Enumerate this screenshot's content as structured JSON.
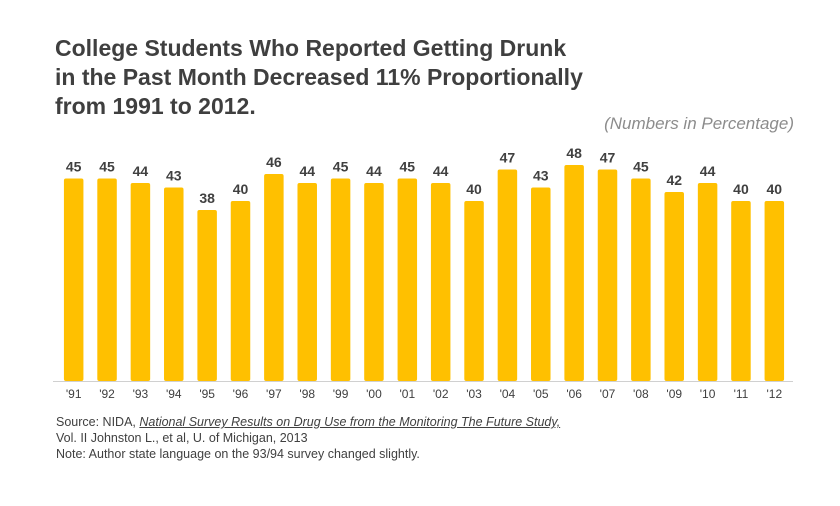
{
  "title_lines": [
    "College Students Who Reported Getting Drunk",
    "in the Past Month Decreased 11% Proportionally",
    "from 1991 to 2012."
  ],
  "subtitle": "(Numbers in Percentage)",
  "source": {
    "prefix": "Source: NIDA, ",
    "title": "National Survey Results on Drug Use from the Monitoring The Future Study,",
    "line2": "Vol. II Johnston L., et al, U. of Michigan, 2013",
    "line3": "Note: Author state language on the 93/94 survey changed slightly."
  },
  "colors": {
    "bar": "#ffc000",
    "title": "#3f3f3f",
    "subtitle": "#8c8c8c"
  },
  "chart_data": {
    "type": "bar",
    "categories": [
      "'91",
      "'92",
      "'93",
      "'94",
      "'95",
      "'96",
      "'97",
      "'98",
      "'99",
      "'00",
      "'01",
      "'02",
      "'03",
      "'04",
      "'05",
      "'06",
      "'07",
      "'08",
      "'09",
      "'10",
      "'11",
      "'12"
    ],
    "values": [
      45,
      45,
      44,
      43,
      38,
      40,
      46,
      44,
      45,
      44,
      45,
      44,
      40,
      47,
      43,
      48,
      47,
      45,
      42,
      44,
      40,
      40
    ],
    "title": "College Students Who Reported Getting Drunk in the Past Month Decreased 11% Proportionally from 1991 to 2012.",
    "ylim": [
      0,
      48
    ]
  }
}
